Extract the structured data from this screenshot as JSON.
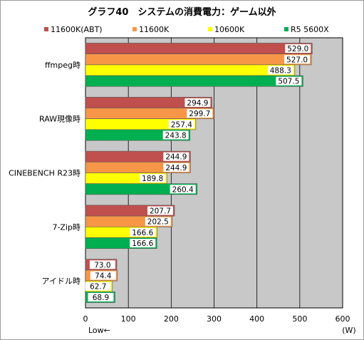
{
  "chart_data": {
    "type": "bar",
    "orientation": "horizontal",
    "title": "グラフ40　システムの消費電力：ゲーム以外",
    "categories": [
      "ffmpeg時",
      "RAW現像時",
      "CINEBENCH R23時",
      "7-Zip時",
      "アイドル時"
    ],
    "series": [
      {
        "name": "11600K(ABT)",
        "color": "#c0504d",
        "values": [
          529.0,
          294.9,
          244.9,
          207.7,
          73.0
        ]
      },
      {
        "name": "11600K",
        "color": "#f79646",
        "values": [
          527.0,
          299.7,
          244.9,
          202.5,
          74.4
        ]
      },
      {
        "name": "10600K",
        "color": "#ffff00",
        "values": [
          488.3,
          257.4,
          189.8,
          166.6,
          62.7
        ]
      },
      {
        "name": "R5 5600X",
        "color": "#00b050",
        "values": [
          507.5,
          243.8,
          260.4,
          166.6,
          68.9
        ]
      }
    ],
    "xlim": [
      0,
      600
    ],
    "xticks": [
      0,
      100,
      200,
      300,
      400,
      500,
      600
    ],
    "xunit": "(W)",
    "direction_note": "Low←",
    "grid": true,
    "legend_position": "top"
  }
}
